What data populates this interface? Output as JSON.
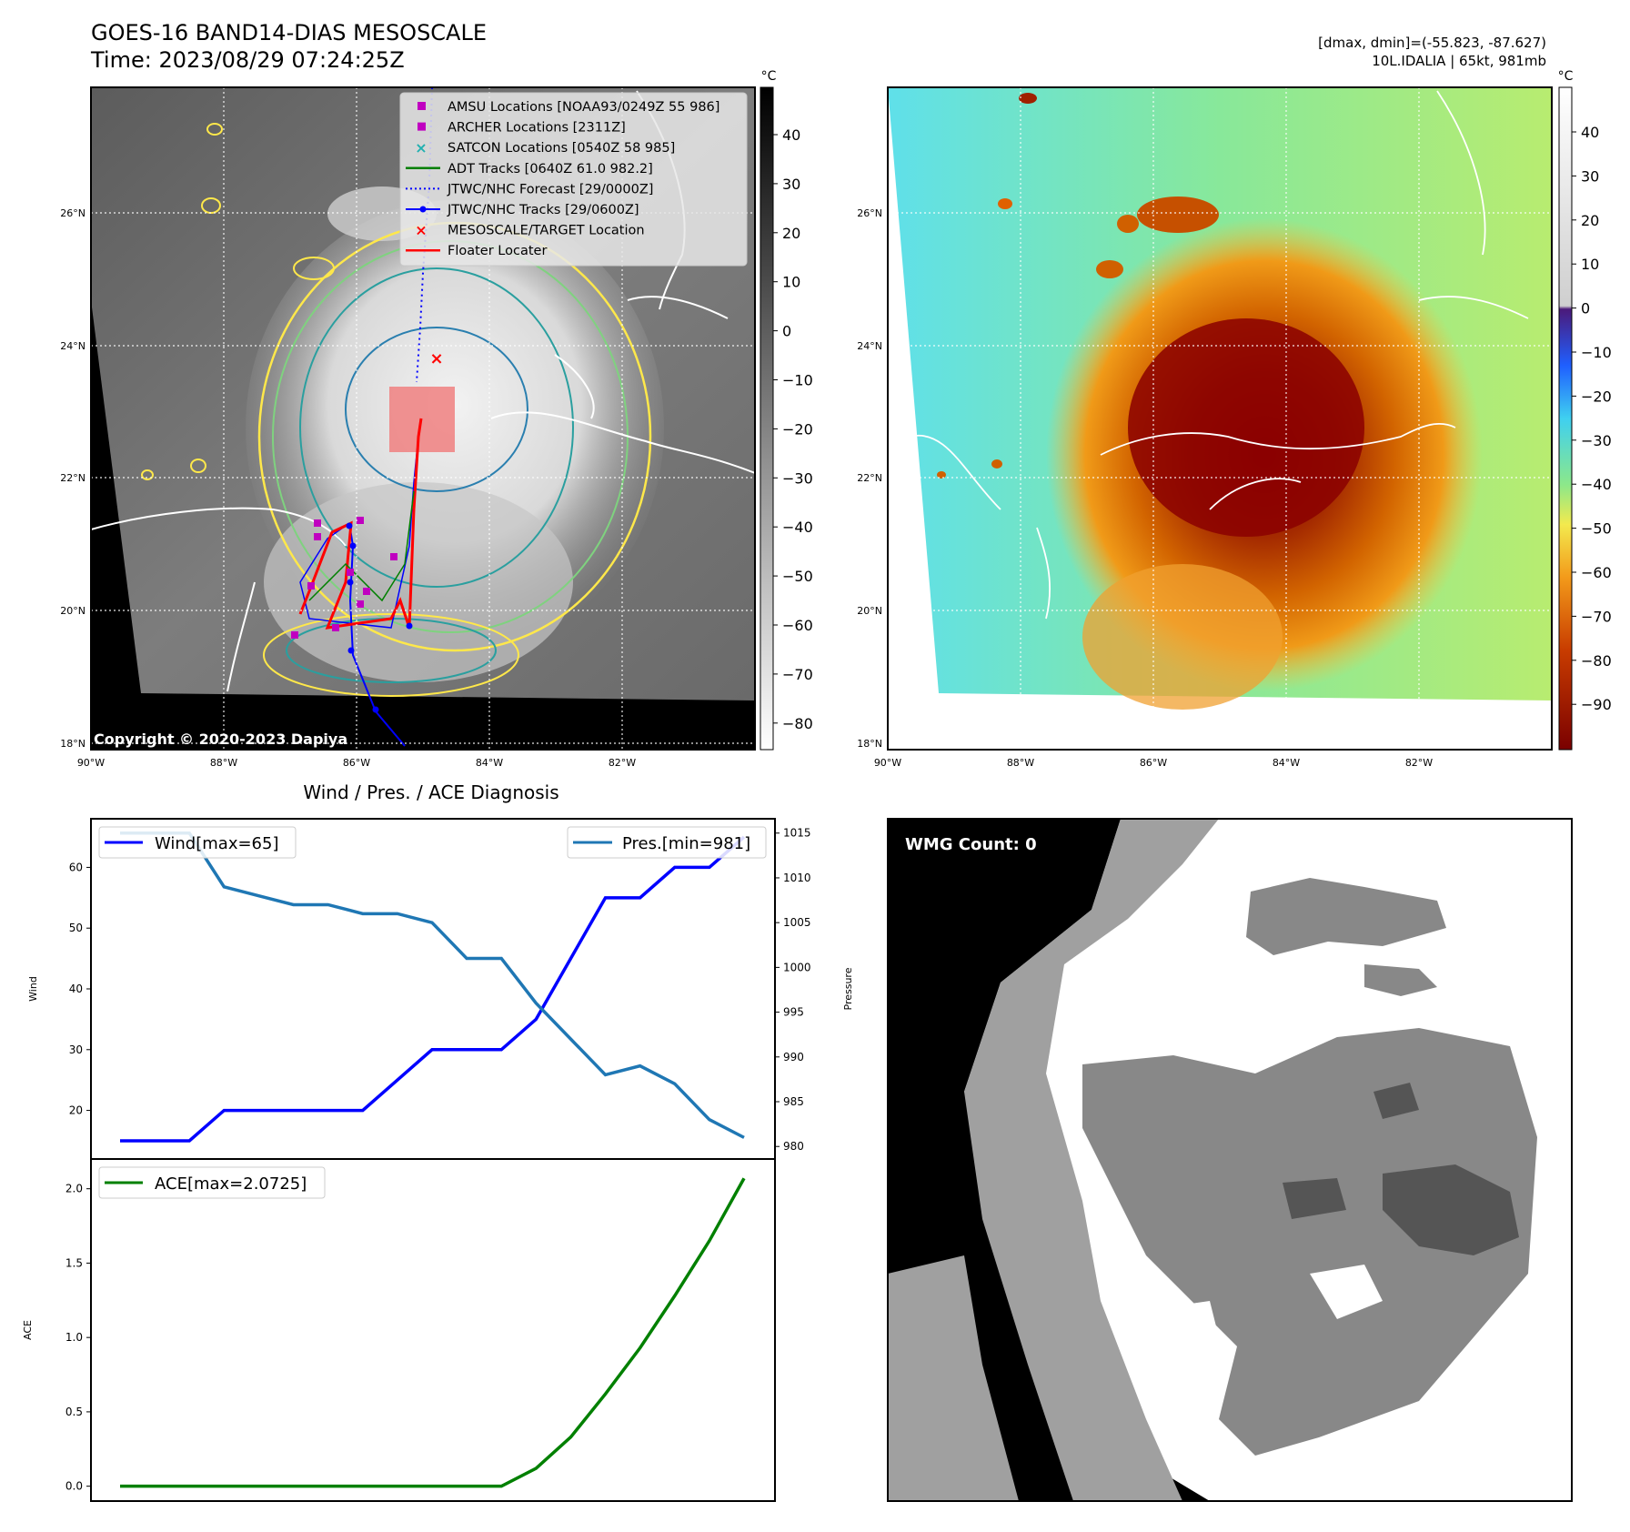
{
  "header": {
    "title_line1": "GOES-16 BAND14-DIAS MESOSCALE",
    "title_line2": "Time: 2023/08/29 07:24:25Z",
    "right_line1": "[dmax, dmin]=(-55.823, -87.627)",
    "right_line2": "10L.IDALIA | 65kt, 981mb"
  },
  "map_axes": {
    "lat_ticks": [
      "26°N",
      "24°N",
      "22°N",
      "20°N",
      "18°N"
    ],
    "lon_ticks": [
      "90°W",
      "88°W",
      "86°W",
      "84°W",
      "82°W"
    ]
  },
  "colorbar_gray": {
    "unit": "°C",
    "ticks": [
      "40",
      "30",
      "20",
      "10",
      "0",
      "−10",
      "−20",
      "−30",
      "−40",
      "−50",
      "−60",
      "−70",
      "−80"
    ]
  },
  "colorbar_color": {
    "unit": "°C",
    "ticks": [
      "40",
      "30",
      "20",
      "10",
      "0",
      "−10",
      "−20",
      "−30",
      "−40",
      "−50",
      "−60",
      "−70",
      "−80",
      "−90"
    ]
  },
  "legend": [
    {
      "label": "AMSU Locations [NOAA93/0249Z 55 986]",
      "color": "#c000c0",
      "marker": "square"
    },
    {
      "label": "ARCHER Locations [2311Z]",
      "color": "#c000c0",
      "marker": "square"
    },
    {
      "label": "SATCON Locations [0540Z 58 985]",
      "color": "#20b0b0",
      "marker": "x"
    },
    {
      "label": "ADT Tracks [0640Z 61.0 982.2]",
      "color": "#008000",
      "marker": "line"
    },
    {
      "label": "JTWC/NHC Forecast [29/0000Z]",
      "color": "#0000ff",
      "marker": "dotted"
    },
    {
      "label": "JTWC/NHC Tracks [29/0600Z]",
      "color": "#0000ff",
      "marker": "line-dot"
    },
    {
      "label": "MESOSCALE/TARGET Location",
      "color": "#ff0000",
      "marker": "x"
    },
    {
      "label": "Floater Locater",
      "color": "#ff0000",
      "marker": "line"
    }
  ],
  "copyright": "Copyright © 2020-2023 Dapiya",
  "wmg": {
    "label": "WMG Count: 0"
  },
  "chart_data": [
    {
      "type": "line",
      "title": "Wind / Pres. / ACE Diagnosis",
      "ylabel": "Wind",
      "y2label": "Pressure",
      "ylim": [
        12,
        68
      ],
      "y2lim": [
        978.6,
        1016.6
      ],
      "y_ticks": [
        20,
        30,
        40,
        50,
        60
      ],
      "y2_ticks": [
        980,
        985,
        990,
        995,
        1000,
        1005,
        1010,
        1015
      ],
      "legend_left": "Wind[max=65]",
      "legend_right": "Pres.[min=981]",
      "x": [
        0,
        1,
        2,
        3,
        4,
        5,
        6,
        7,
        8,
        9,
        10,
        11,
        12,
        13,
        14,
        15,
        16,
        17,
        18
      ],
      "series": [
        {
          "name": "Wind[max=65]",
          "color": "#0000ff",
          "axis": "left",
          "values": [
            15,
            15,
            15,
            20,
            20,
            20,
            20,
            20,
            25,
            30,
            30,
            30,
            35,
            45,
            55,
            55,
            60,
            60,
            65
          ]
        },
        {
          "name": "Pres.[min=981]",
          "color": "#1f77b4",
          "axis": "right",
          "values": [
            1015,
            1015,
            1015,
            1009,
            1008,
            1007,
            1007,
            1006,
            1006,
            1005,
            1001,
            1001,
            996,
            992,
            988,
            989,
            987,
            983,
            981
          ]
        }
      ]
    },
    {
      "type": "line",
      "ylabel": "ACE",
      "ylim": [
        -0.1,
        2.2
      ],
      "y_ticks": [
        "0.0",
        "0.5",
        "1.0",
        "1.5",
        "2.0"
      ],
      "legend": "ACE[max=2.0725]",
      "x": [
        0,
        1,
        2,
        3,
        4,
        5,
        6,
        7,
        8,
        9,
        10,
        11,
        12,
        13,
        14,
        15,
        16,
        17,
        18
      ],
      "series": [
        {
          "name": "ACE[max=2.0725]",
          "color": "#008000",
          "values": [
            0,
            0,
            0,
            0,
            0,
            0,
            0,
            0,
            0,
            0,
            0,
            0,
            0.12,
            0.33,
            0.62,
            0.93,
            1.28,
            1.65,
            2.07
          ]
        }
      ]
    }
  ]
}
